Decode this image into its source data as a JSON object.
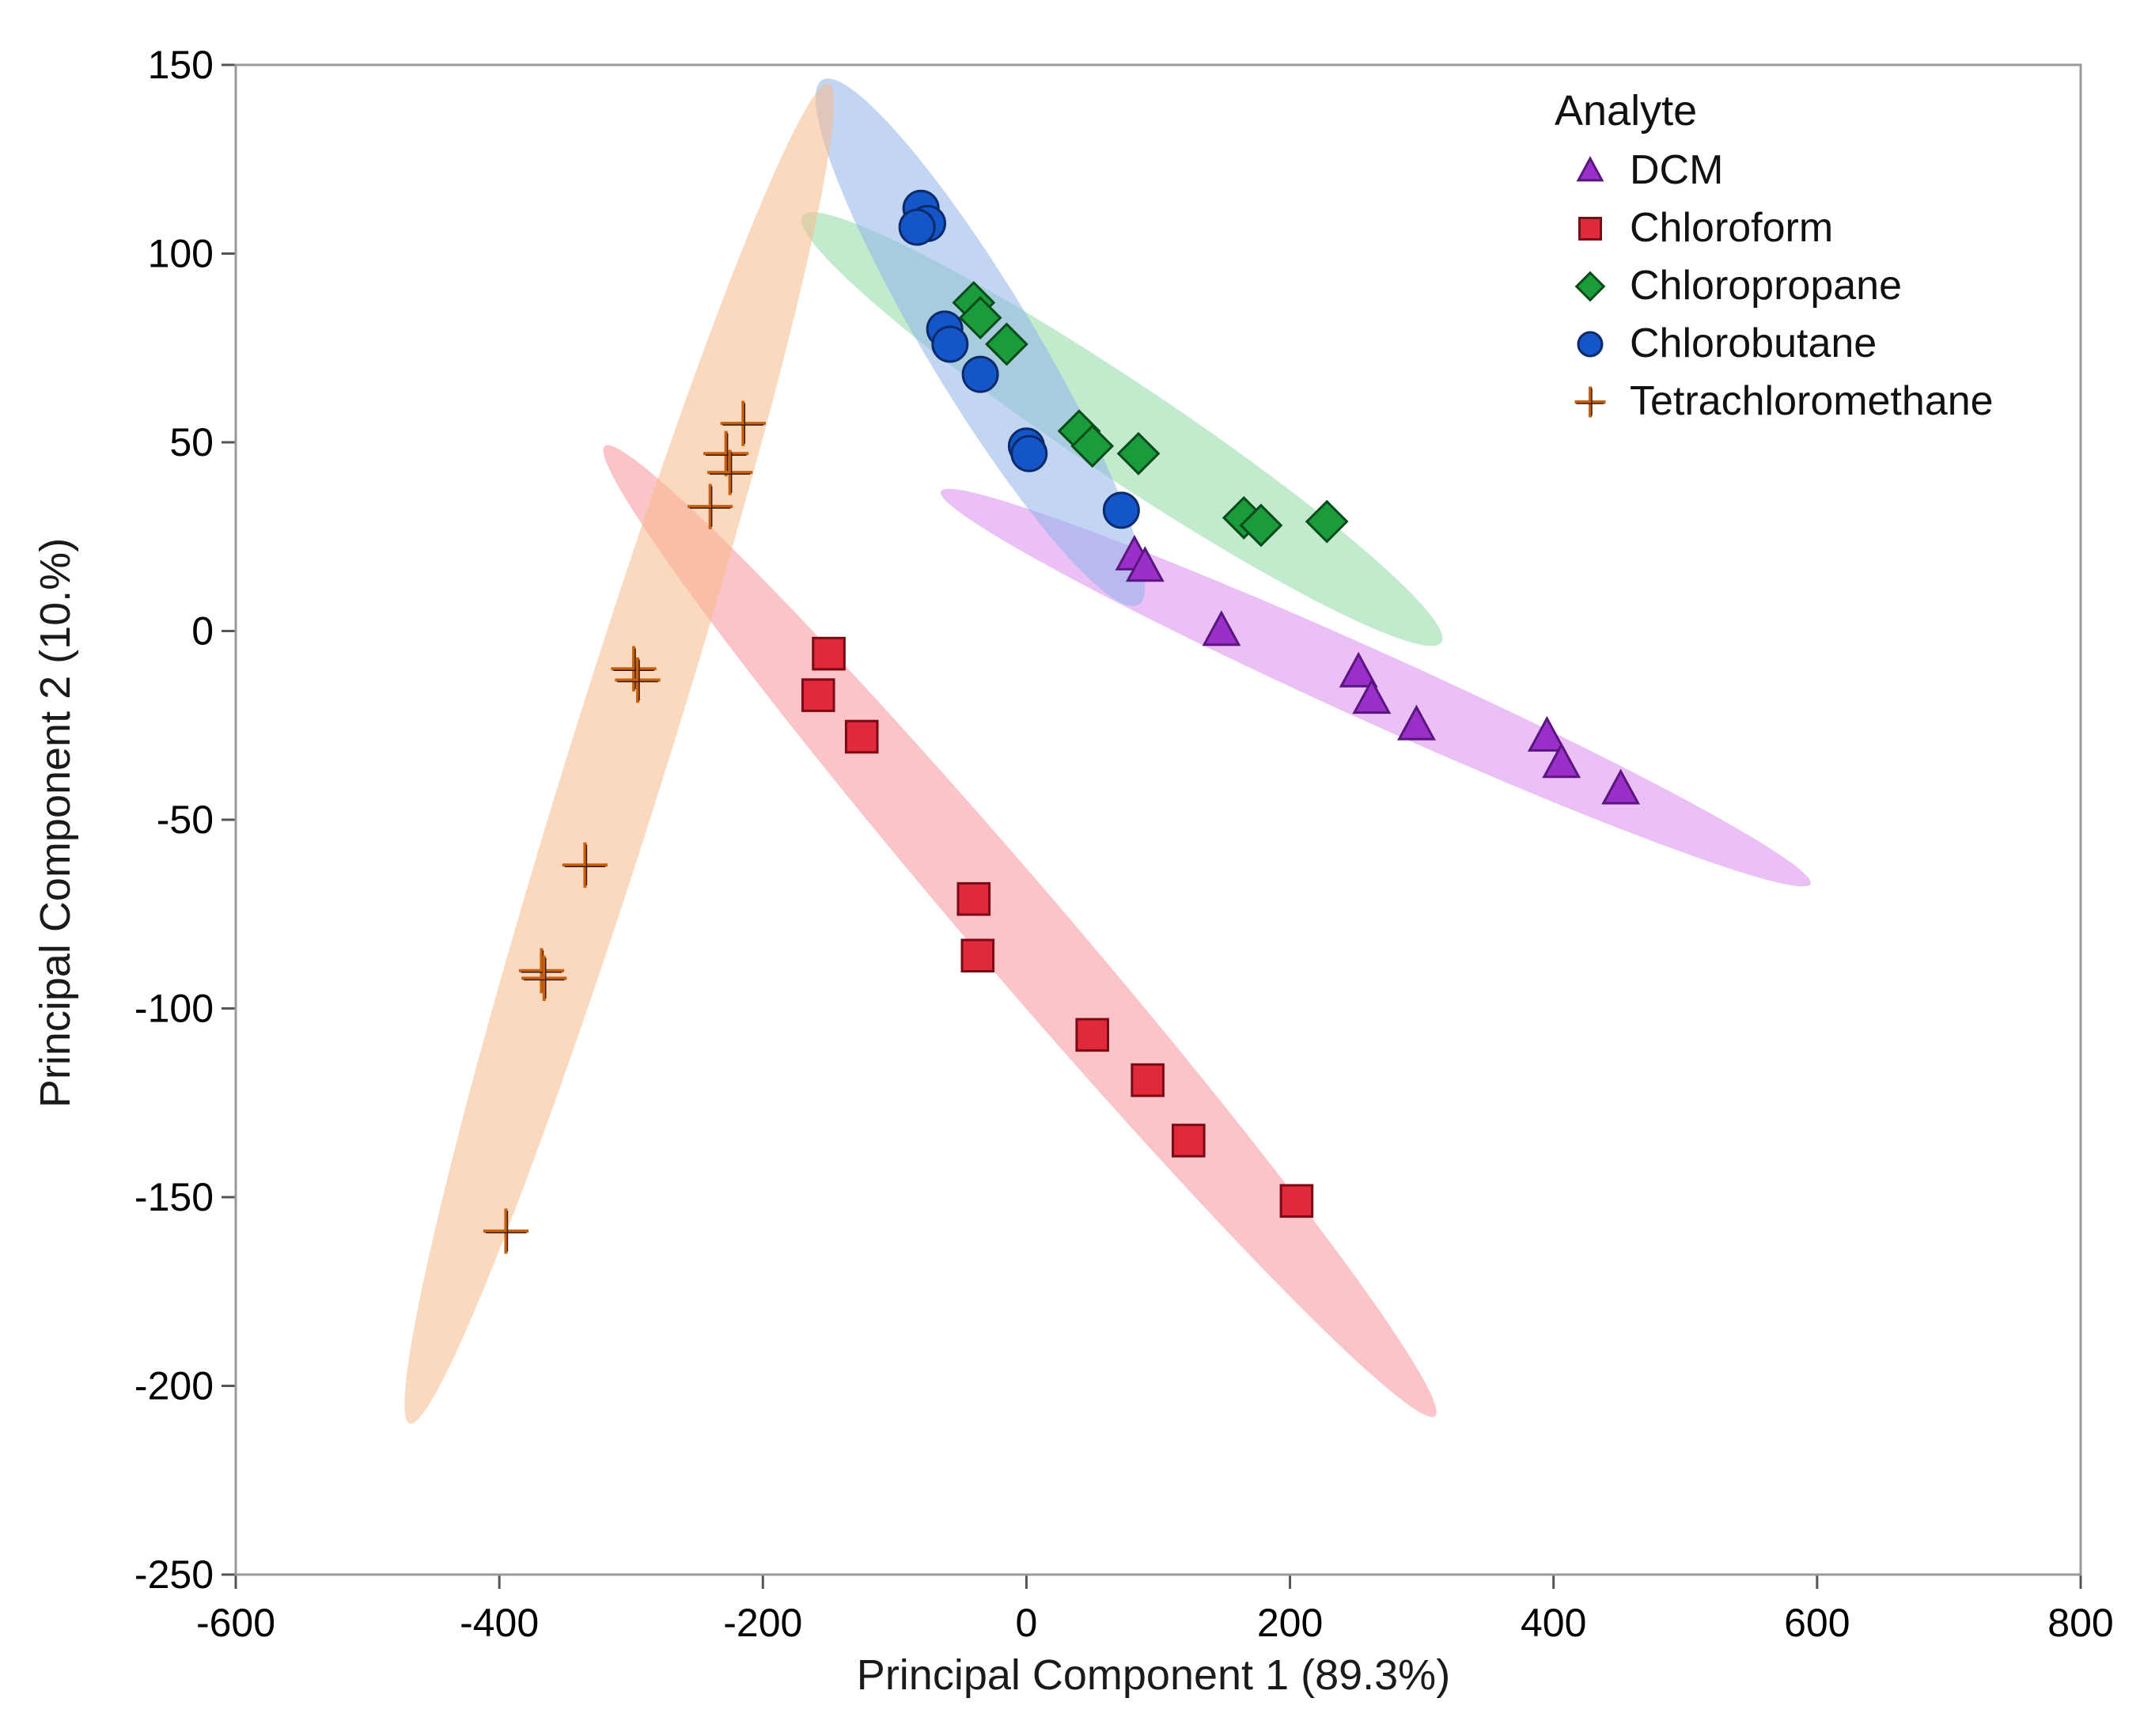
{
  "chart_data": {
    "type": "scatter",
    "xlabel": "Principal Component 1 (89.3%)",
    "ylabel": "Principal Component 2 (10.%)",
    "xlim": [
      -600,
      800
    ],
    "ylim": [
      -250,
      150
    ],
    "xticks": [
      -600,
      -400,
      -200,
      0,
      200,
      400,
      600,
      800
    ],
    "yticks": [
      150,
      100,
      50,
      0,
      -50,
      -100,
      -150,
      -200,
      -250
    ],
    "legend": {
      "title": "Analyte",
      "placement": "top-right"
    },
    "series": [
      {
        "name": "DCM",
        "marker": "triangle",
        "color": "#9b30c8",
        "ellipse_color": "#d88cf0",
        "ellipse": [
          [
            -65,
            37
          ],
          [
            595,
            -67
          ]
        ],
        "points": [
          [
            82,
            20
          ],
          [
            90,
            17
          ],
          [
            148,
            0
          ],
          [
            252,
            -11
          ],
          [
            262,
            -18
          ],
          [
            296,
            -25
          ],
          [
            395,
            -28
          ],
          [
            406,
            -35
          ],
          [
            451,
            -42
          ]
        ]
      },
      {
        "name": "Chloroform",
        "marker": "square",
        "color": "#e0293a",
        "ellipse_color": "#f5939a",
        "ellipse": [
          [
            -320,
            49
          ],
          [
            310,
            -208
          ]
        ],
        "points": [
          [
            -150,
            -6
          ],
          [
            -158,
            -17
          ],
          [
            -125,
            -28
          ],
          [
            -40,
            -71
          ],
          [
            -37,
            -86
          ],
          [
            50,
            -107
          ],
          [
            92,
            -119
          ],
          [
            123,
            -135
          ],
          [
            205,
            -151
          ]
        ]
      },
      {
        "name": "Chloropropane",
        "marker": "diamond",
        "color": "#1a9b3c",
        "ellipse_color": "#8fdaa6",
        "ellipse": [
          [
            -170,
            110
          ],
          [
            315,
            -3
          ]
        ],
        "points": [
          [
            -40,
            87
          ],
          [
            -35,
            83
          ],
          [
            -15,
            76
          ],
          [
            40,
            53
          ],
          [
            50,
            49
          ],
          [
            85,
            47
          ],
          [
            165,
            30
          ],
          [
            178,
            28
          ],
          [
            228,
            29
          ]
        ]
      },
      {
        "name": "Chlorobutane",
        "marker": "circle",
        "color": "#1455c8",
        "ellipse_color": "#8fb2ea",
        "ellipse": [
          [
            -155,
            146
          ],
          [
            85,
            7
          ]
        ],
        "points": [
          [
            -80,
            112
          ],
          [
            -75,
            108
          ],
          [
            -83,
            107
          ],
          [
            -62,
            80
          ],
          [
            -58,
            76
          ],
          [
            -35,
            68
          ],
          [
            0,
            49
          ],
          [
            2,
            47
          ],
          [
            72,
            32
          ]
        ]
      },
      {
        "name": "Tetrachloromethane",
        "marker": "cross",
        "color": "#c8600a",
        "ellipse_color": "#f6b98a",
        "ellipse": [
          [
            -150,
            145
          ],
          [
            -468,
            -210
          ]
        ],
        "points": [
          [
            -215,
            55
          ],
          [
            -228,
            47
          ],
          [
            -225,
            42
          ],
          [
            -240,
            33
          ],
          [
            -298,
            -10
          ],
          [
            -295,
            -13
          ],
          [
            -335,
            -62
          ],
          [
            -368,
            -90
          ],
          [
            -366,
            -92
          ],
          [
            -395,
            -159
          ]
        ]
      }
    ]
  }
}
